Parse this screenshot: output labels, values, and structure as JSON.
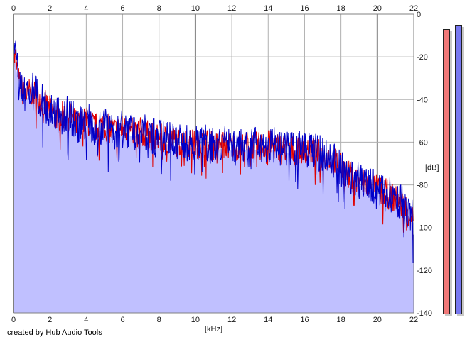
{
  "credit": "created by Hub Audio Tools",
  "colors": {
    "background": "#ffffff",
    "fill": "#c0c0ff",
    "grid": "#b0b0b0",
    "grid_major": "#808080",
    "left_channel": "#e00000",
    "right_channel": "#0000c8",
    "meter_left": "#f07878",
    "meter_right": "#7878f0"
  },
  "meters": {
    "left_level_db": -7,
    "right_level_db": -5
  },
  "chart_data": {
    "type": "line",
    "title": "",
    "xlabel": "[kHz]",
    "ylabel": "[dB]",
    "xlim": [
      0,
      22
    ],
    "ylim": [
      -140,
      0
    ],
    "x_ticks": [
      0,
      2,
      4,
      6,
      8,
      10,
      12,
      14,
      16,
      18,
      20,
      22
    ],
    "y_ticks": [
      0,
      -20,
      -40,
      -60,
      -80,
      -100,
      -120,
      -140
    ],
    "grid": true,
    "x_axis_position": "top and bottom",
    "y_axis_position": "right",
    "envelope": {
      "x": [
        0,
        0.1,
        0.3,
        0.6,
        1,
        1.5,
        2,
        2.5,
        3,
        3.5,
        4,
        4.5,
        5,
        5.5,
        6,
        6.5,
        7,
        7.5,
        8,
        8.5,
        9,
        9.5,
        10,
        10.5,
        11,
        11.5,
        12,
        12.5,
        13,
        13.5,
        14,
        14.5,
        15,
        15.5,
        16,
        16.5,
        17,
        17.5,
        18,
        18.5,
        19,
        19.5,
        20,
        20.5,
        21,
        21.5,
        22
      ],
      "y": [
        -22,
        -20,
        -32,
        -38,
        -36,
        -40,
        -45,
        -48,
        -47,
        -52,
        -50,
        -53,
        -52,
        -55,
        -54,
        -55,
        -55,
        -57,
        -58,
        -59,
        -60,
        -60,
        -61,
        -60,
        -62,
        -61,
        -62,
        -62,
        -61,
        -62,
        -61,
        -62,
        -63,
        -64,
        -63,
        -64,
        -66,
        -68,
        -72,
        -76,
        -78,
        -80,
        -82,
        -84,
        -87,
        -90,
        -96
      ]
    },
    "series": [
      {
        "name": "",
        "color": "#e00000",
        "seed": 7,
        "amplitude_db": 7
      },
      {
        "name": "",
        "color": "#0000c8",
        "seed": 13,
        "amplitude_db": 9
      }
    ]
  }
}
